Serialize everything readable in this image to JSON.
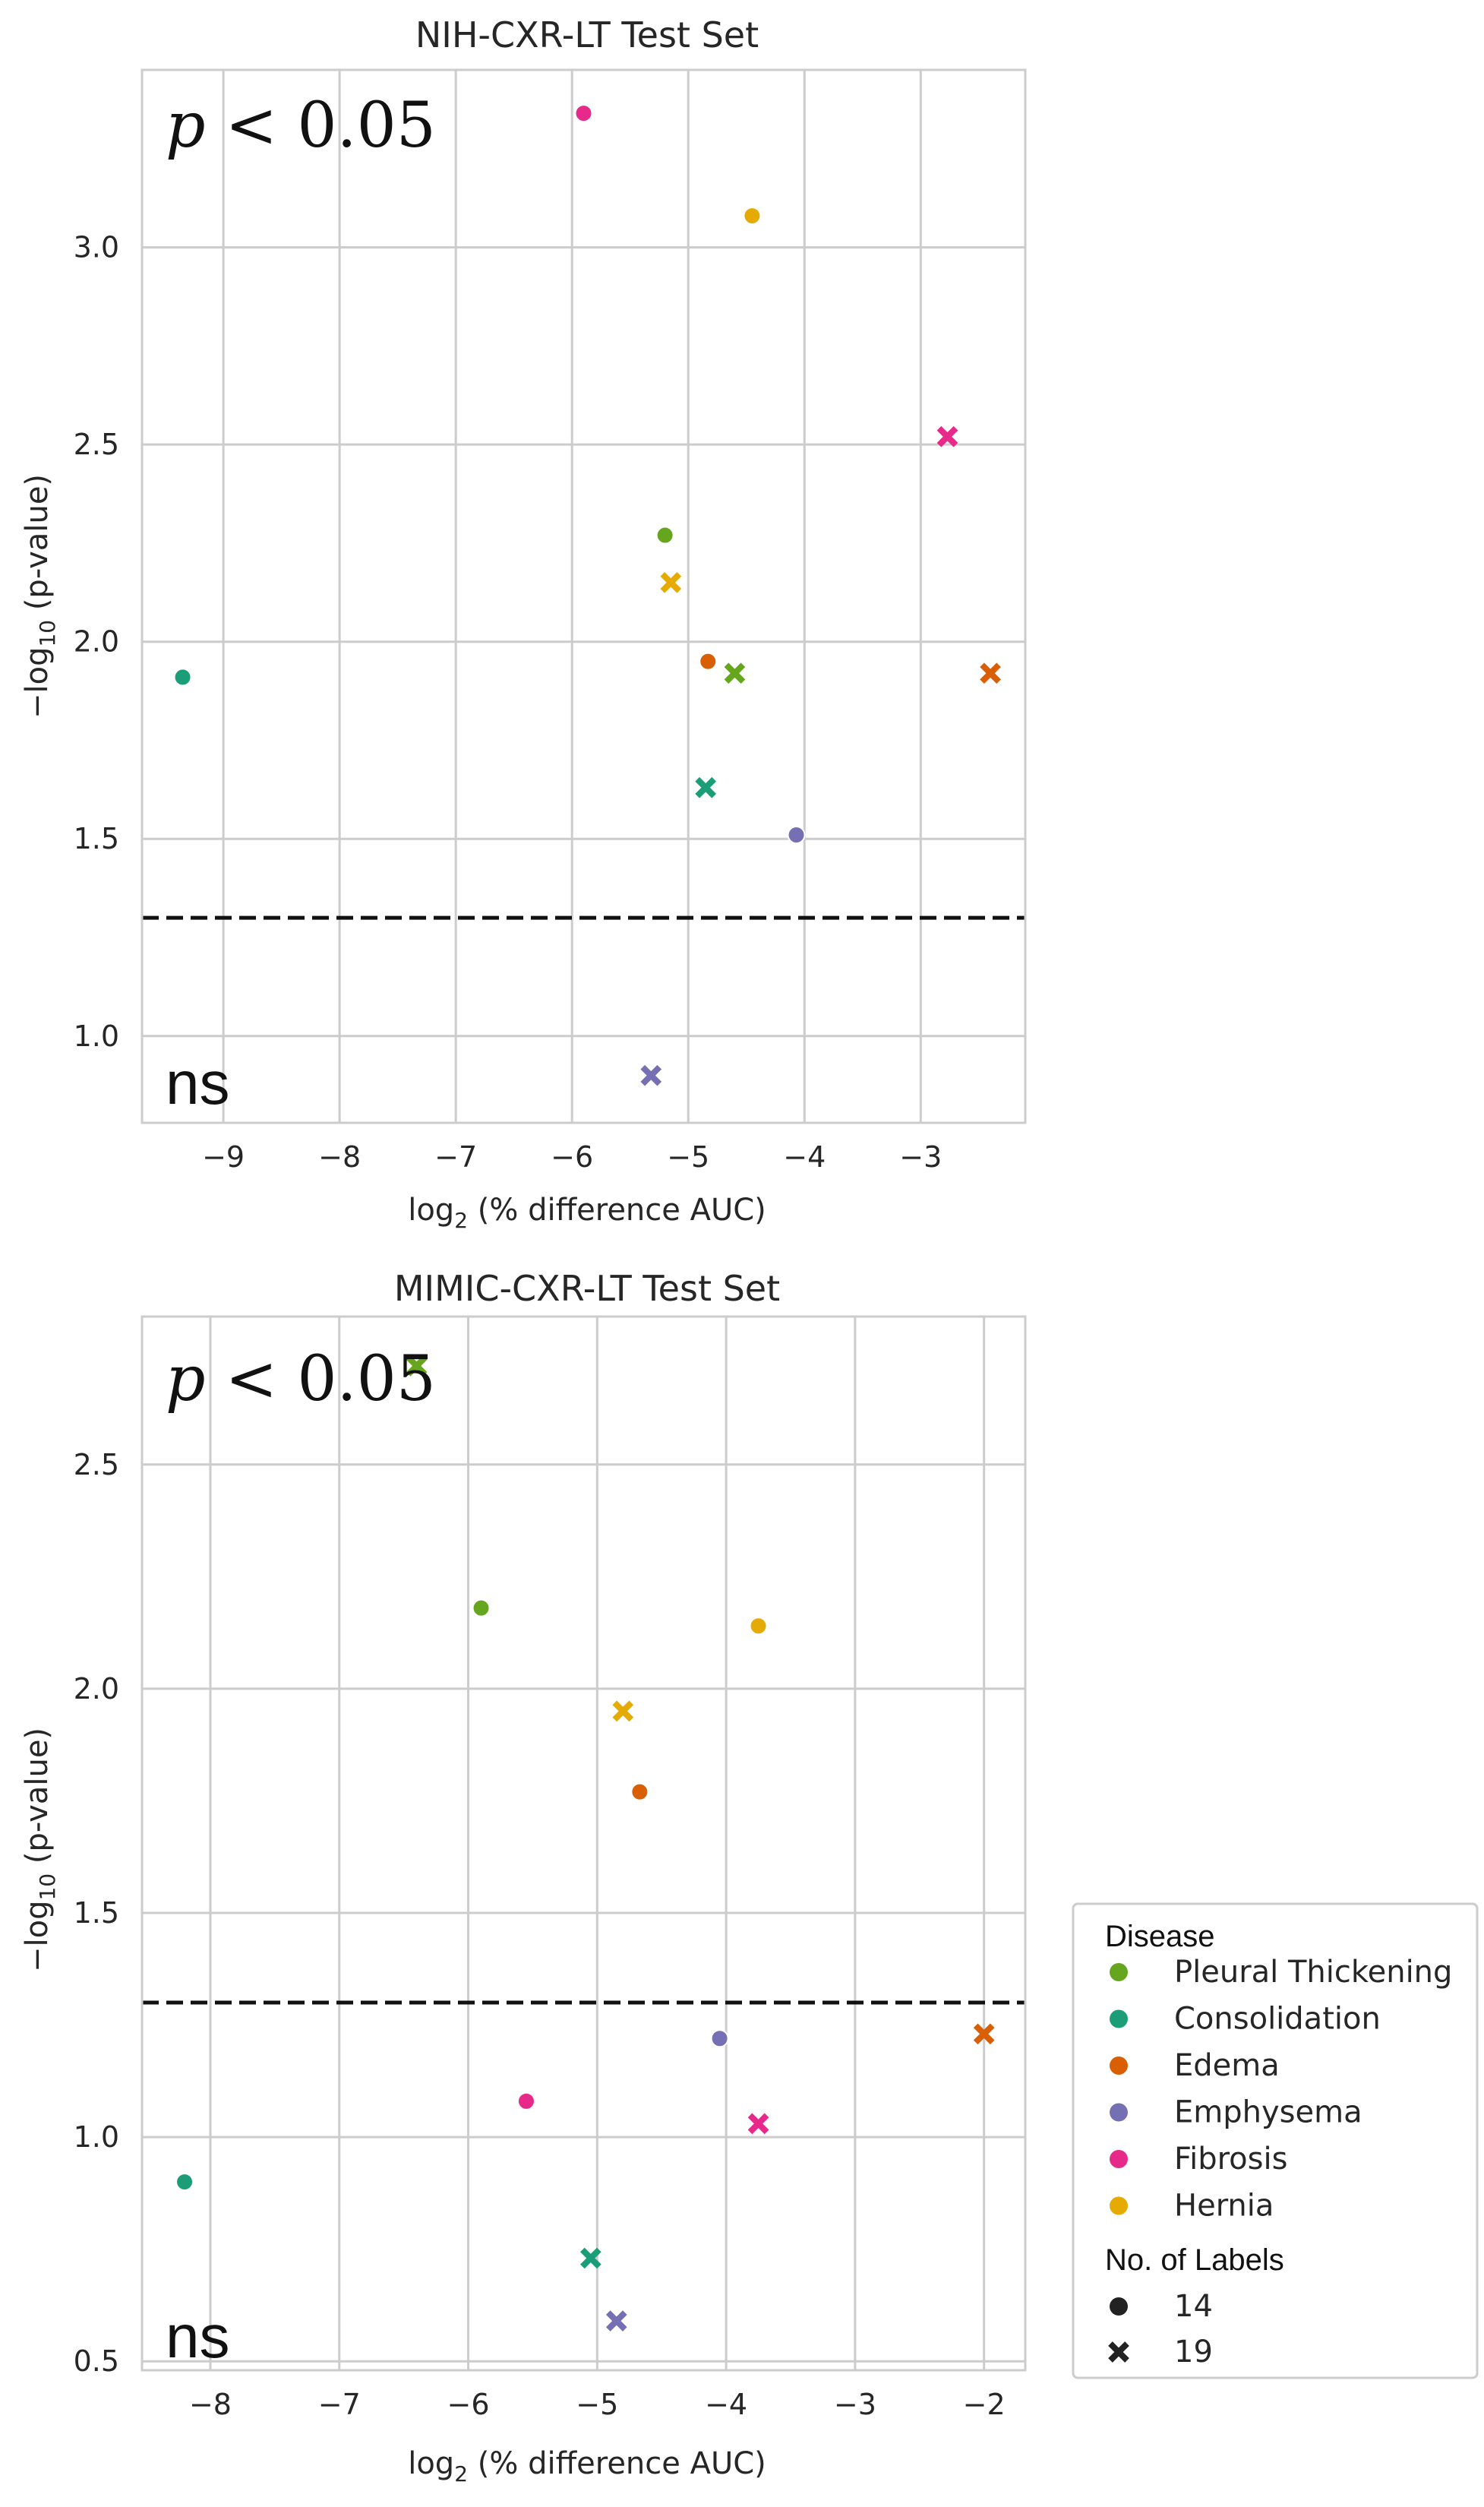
{
  "chart_data": [
    {
      "type": "scatter",
      "title": "NIH-CXR-LT Test Set",
      "xlabel_main": "log",
      "xlabel_sub": "2",
      "xlabel_rest": " (% difference AUC)",
      "ylabel_main": "−log",
      "ylabel_sub": "10",
      "ylabel_rest": " (p-value)",
      "xlim": [
        -9.7,
        -2.1
      ],
      "ylim": [
        0.78,
        3.45
      ],
      "xticks": [
        -9,
        -8,
        -7,
        -6,
        -5,
        -4,
        -3
      ],
      "yticks": [
        1.0,
        1.5,
        2.0,
        2.5,
        3.0
      ],
      "threshold": 1.3,
      "sig_label": "p < 0.05",
      "ns_label": "ns",
      "points": [
        {
          "disease": "Pleural Thickening",
          "labels": "14",
          "x": -5.2,
          "y": 2.27
        },
        {
          "disease": "Pleural Thickening",
          "labels": "19",
          "x": -4.6,
          "y": 1.92
        },
        {
          "disease": "Consolidation",
          "labels": "14",
          "x": -9.35,
          "y": 1.91
        },
        {
          "disease": "Consolidation",
          "labels": "19",
          "x": -4.85,
          "y": 1.63
        },
        {
          "disease": "Edema",
          "labels": "14",
          "x": -4.83,
          "y": 1.95
        },
        {
          "disease": "Edema",
          "labels": "19",
          "x": -2.4,
          "y": 1.92
        },
        {
          "disease": "Emphysema",
          "labels": "14",
          "x": -4.07,
          "y": 1.51
        },
        {
          "disease": "Emphysema",
          "labels": "19",
          "x": -5.32,
          "y": 0.9
        },
        {
          "disease": "Fibrosis",
          "labels": "14",
          "x": -5.9,
          "y": 3.34
        },
        {
          "disease": "Fibrosis",
          "labels": "19",
          "x": -2.77,
          "y": 2.52
        },
        {
          "disease": "Hernia",
          "labels": "14",
          "x": -4.45,
          "y": 3.08
        },
        {
          "disease": "Hernia",
          "labels": "19",
          "x": -5.15,
          "y": 2.15
        }
      ]
    },
    {
      "type": "scatter",
      "title": "MIMIC-CXR-LT Test Set",
      "xlabel_main": "log",
      "xlabel_sub": "2",
      "xlabel_rest": " (% difference AUC)",
      "ylabel_main": "−log",
      "ylabel_sub": "10",
      "ylabel_rest": " (p-value)",
      "xlim": [
        -8.53,
        -1.68
      ],
      "ylim": [
        0.48,
        2.83
      ],
      "xticks": [
        -8,
        -7,
        -6,
        -5,
        -4,
        -3,
        -2
      ],
      "yticks": [
        0.5,
        1.0,
        1.5,
        2.0,
        2.5
      ],
      "threshold": 1.3,
      "sig_label": "p < 0.05",
      "ns_label": "ns",
      "points": [
        {
          "disease": "Pleural Thickening",
          "labels": "14",
          "x": -5.9,
          "y": 2.18
        },
        {
          "disease": "Pleural Thickening",
          "labels": "19",
          "x": -6.4,
          "y": 2.72
        },
        {
          "disease": "Consolidation",
          "labels": "14",
          "x": -8.2,
          "y": 0.9
        },
        {
          "disease": "Consolidation",
          "labels": "19",
          "x": -5.05,
          "y": 0.73
        },
        {
          "disease": "Edema",
          "labels": "14",
          "x": -4.67,
          "y": 1.77
        },
        {
          "disease": "Edema",
          "labels": "19",
          "x": -2.0,
          "y": 1.23
        },
        {
          "disease": "Emphysema",
          "labels": "14",
          "x": -4.05,
          "y": 1.22
        },
        {
          "disease": "Emphysema",
          "labels": "19",
          "x": -4.85,
          "y": 0.59
        },
        {
          "disease": "Fibrosis",
          "labels": "14",
          "x": -5.55,
          "y": 1.08
        },
        {
          "disease": "Fibrosis",
          "labels": "19",
          "x": -3.75,
          "y": 1.03
        },
        {
          "disease": "Hernia",
          "labels": "14",
          "x": -3.75,
          "y": 2.14
        },
        {
          "disease": "Hernia",
          "labels": "19",
          "x": -4.8,
          "y": 1.95
        }
      ]
    }
  ],
  "legend": {
    "disease_title": "Disease",
    "diseases": [
      {
        "name": "Pleural Thickening",
        "color": "#66a61e"
      },
      {
        "name": "Consolidation",
        "color": "#1b9e77"
      },
      {
        "name": "Edema",
        "color": "#d95f02"
      },
      {
        "name": "Emphysema",
        "color": "#7570b3"
      },
      {
        "name": "Fibrosis",
        "color": "#e7298a"
      },
      {
        "name": "Hernia",
        "color": "#e6ab02"
      }
    ],
    "labels_title": "No. of Labels",
    "label_counts": [
      {
        "name": "14",
        "marker": "circle"
      },
      {
        "name": "19",
        "marker": "x"
      }
    ]
  }
}
